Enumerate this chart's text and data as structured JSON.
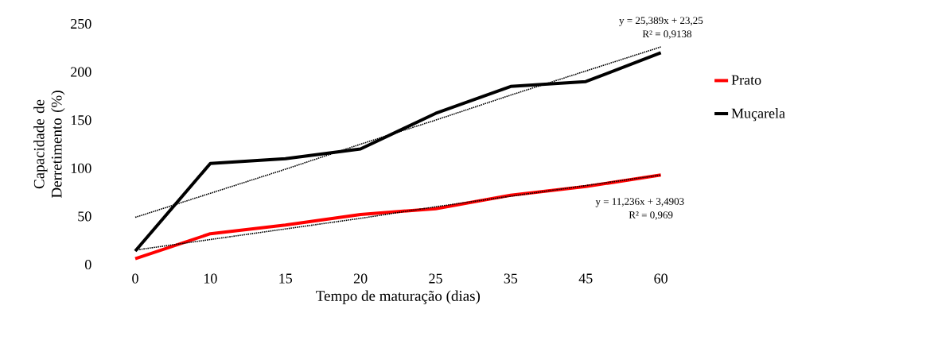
{
  "chart_data": {
    "type": "line",
    "xlabel": "Tempo de maturação (dias)",
    "ylabel": "Capacidade de Derretimento (%)",
    "categories": [
      "0",
      "10",
      "15",
      "20",
      "25",
      "35",
      "45",
      "60"
    ],
    "series": [
      {
        "name": "Prato",
        "color": "#ff0000",
        "values": [
          6,
          32,
          41,
          52,
          58,
          72,
          81,
          93
        ]
      },
      {
        "name": "Muçarela",
        "color": "#000000",
        "values": [
          14,
          105,
          110,
          120,
          157,
          185,
          190,
          220
        ]
      },
      {
        "type": "line",
        "color": "#000000",
        "line_style": "dotted",
        "values": [
          49,
          74,
          99,
          125,
          150,
          176,
          201,
          226
        ]
      },
      {
        "type": "line",
        "color": "#000000",
        "line_style": "dotted",
        "values": [
          15,
          26,
          37,
          48,
          60,
          71,
          82,
          93
        ]
      }
    ],
    "annotations": [
      "y = 25,389x + 23,25",
      "R² = 0,9138",
      "y = 11,236x + 3,4903",
      "R² = 0,969"
    ],
    "ylim": [
      0,
      250
    ],
    "yticks": [
      0,
      50,
      100,
      150,
      200,
      250
    ],
    "grid": false,
    "legend": "right",
    "marker": "none"
  }
}
